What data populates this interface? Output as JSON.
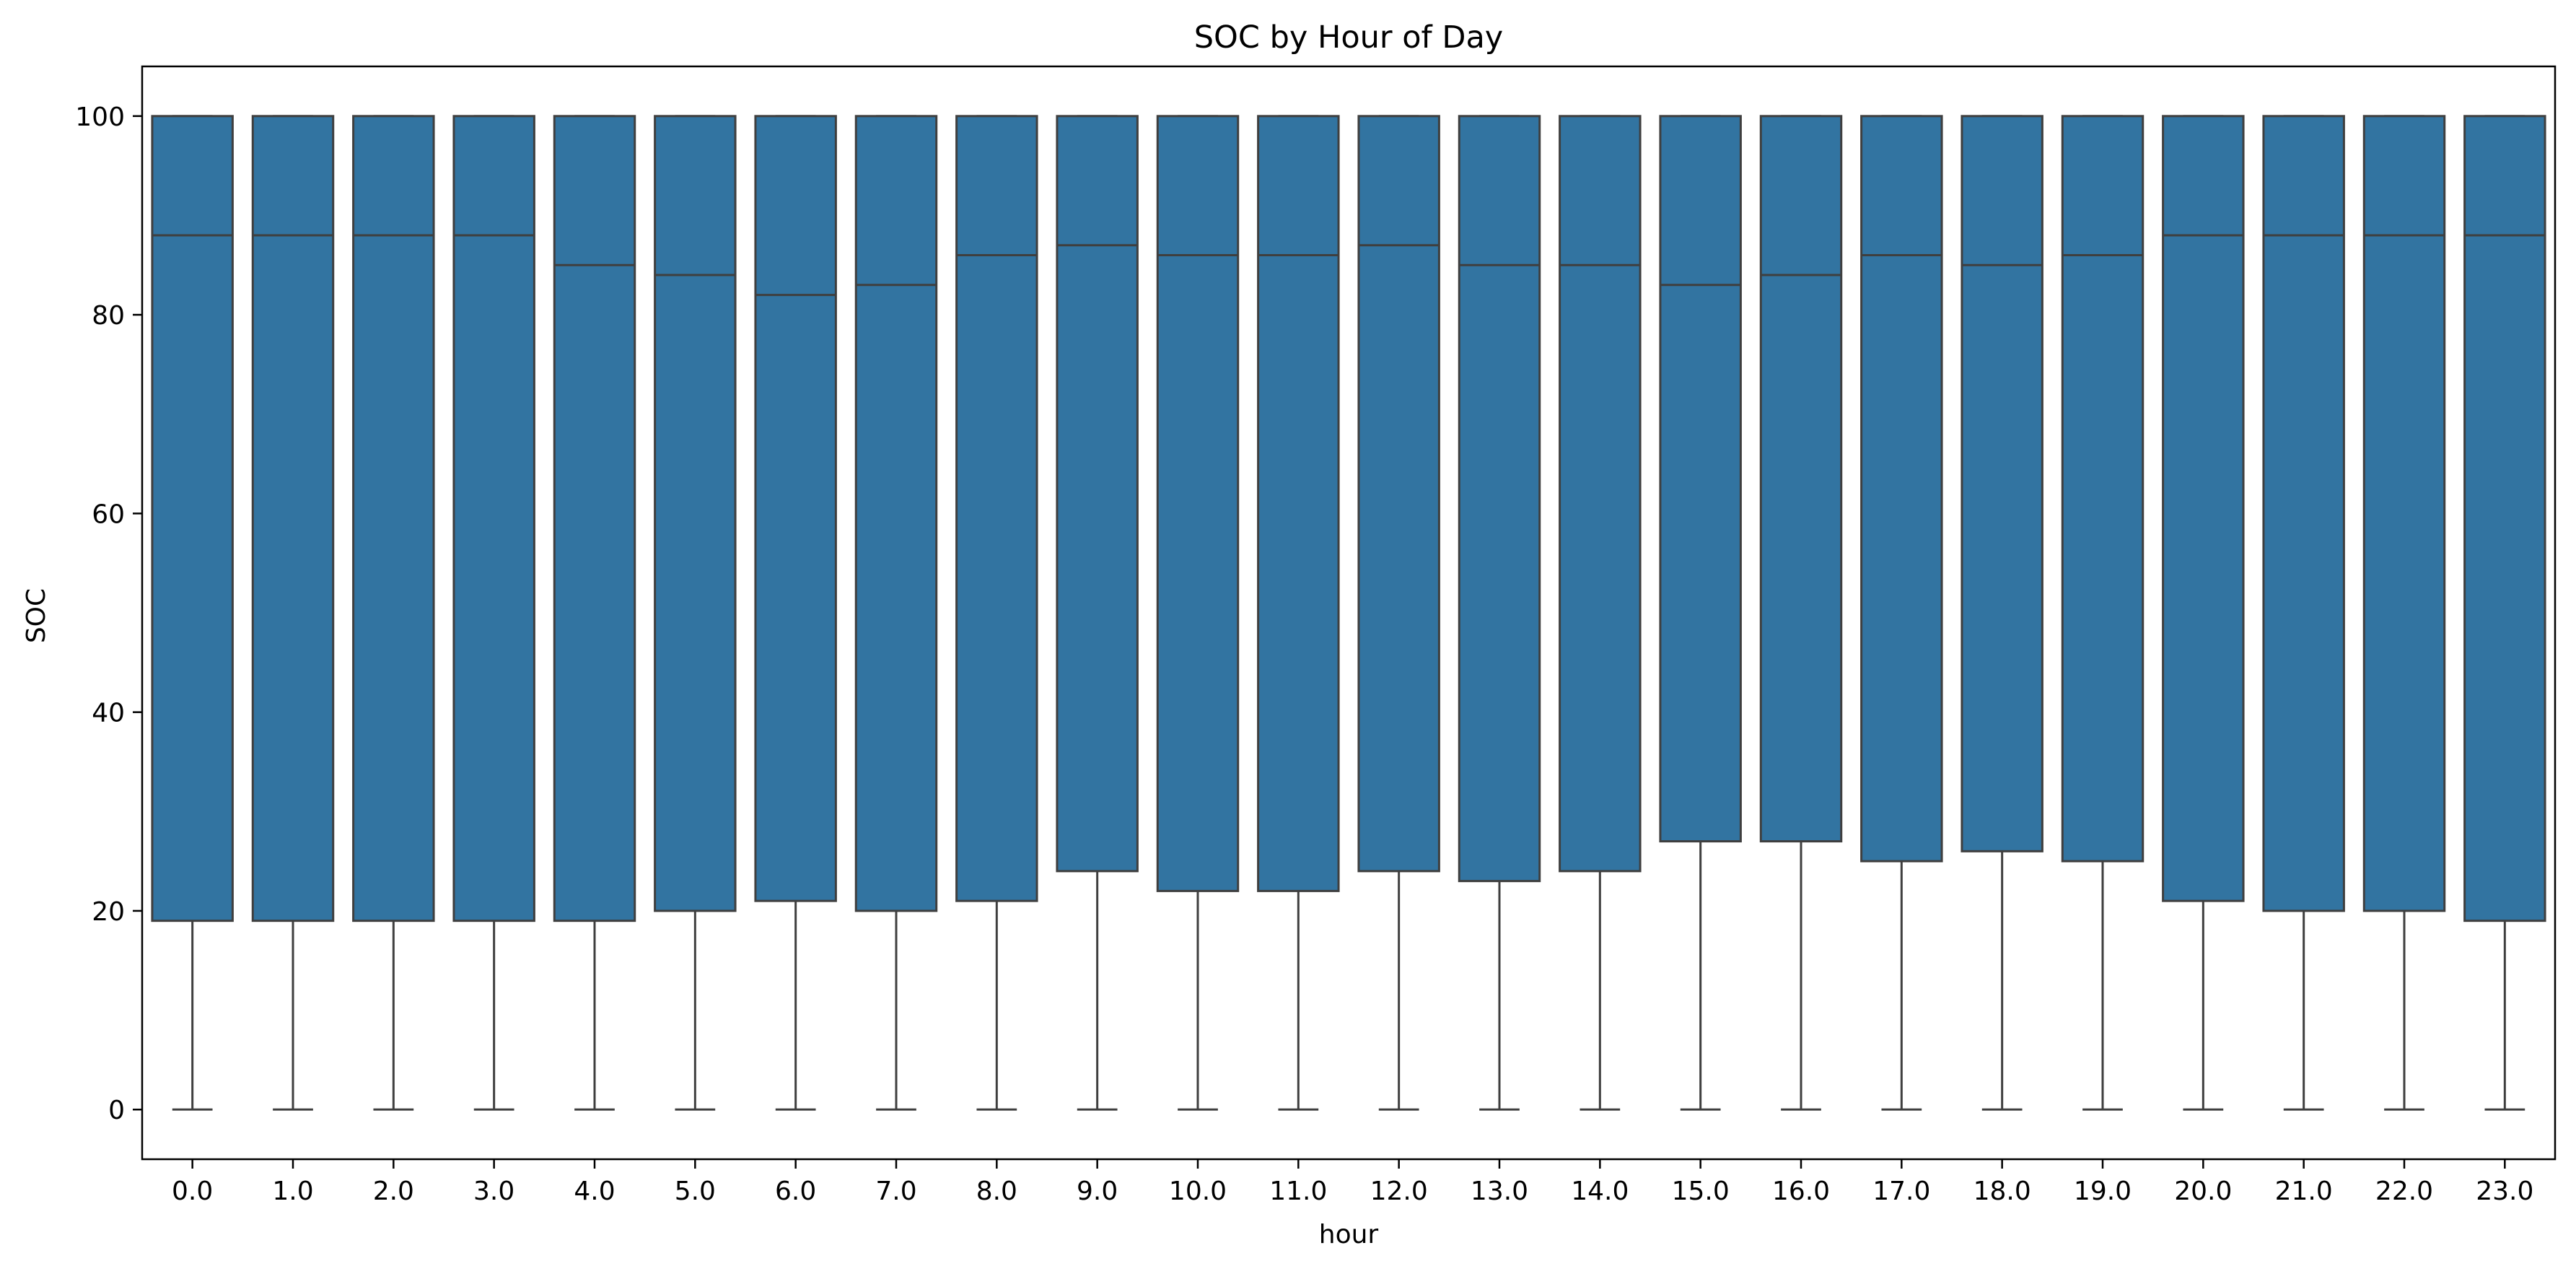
{
  "chart_data": {
    "type": "box",
    "title": "SOC by Hour of Day",
    "xlabel": "hour",
    "ylabel": "SOC",
    "ylim": [
      -5,
      105
    ],
    "yticks": [
      0,
      20,
      40,
      60,
      80,
      100
    ],
    "grid": false,
    "legend": "none",
    "box_color": "#3274a1",
    "line_color": "#3f3f3f",
    "categories": [
      "0.0",
      "1.0",
      "2.0",
      "3.0",
      "4.0",
      "5.0",
      "6.0",
      "7.0",
      "8.0",
      "9.0",
      "10.0",
      "11.0",
      "12.0",
      "13.0",
      "14.0",
      "15.0",
      "16.0",
      "17.0",
      "18.0",
      "19.0",
      "20.0",
      "21.0",
      "22.0",
      "23.0"
    ],
    "boxes": [
      {
        "min": 0,
        "q1": 19,
        "median": 88,
        "q3": 100,
        "max": 100
      },
      {
        "min": 0,
        "q1": 19,
        "median": 88,
        "q3": 100,
        "max": 100
      },
      {
        "min": 0,
        "q1": 19,
        "median": 88,
        "q3": 100,
        "max": 100
      },
      {
        "min": 0,
        "q1": 19,
        "median": 88,
        "q3": 100,
        "max": 100
      },
      {
        "min": 0,
        "q1": 19,
        "median": 85,
        "q3": 100,
        "max": 100
      },
      {
        "min": 0,
        "q1": 20,
        "median": 84,
        "q3": 100,
        "max": 100
      },
      {
        "min": 0,
        "q1": 21,
        "median": 82,
        "q3": 100,
        "max": 100
      },
      {
        "min": 0,
        "q1": 20,
        "median": 83,
        "q3": 100,
        "max": 100
      },
      {
        "min": 0,
        "q1": 21,
        "median": 86,
        "q3": 100,
        "max": 100
      },
      {
        "min": 0,
        "q1": 24,
        "median": 87,
        "q3": 100,
        "max": 100
      },
      {
        "min": 0,
        "q1": 22,
        "median": 86,
        "q3": 100,
        "max": 100
      },
      {
        "min": 0,
        "q1": 22,
        "median": 86,
        "q3": 100,
        "max": 100
      },
      {
        "min": 0,
        "q1": 24,
        "median": 87,
        "q3": 100,
        "max": 100
      },
      {
        "min": 0,
        "q1": 23,
        "median": 85,
        "q3": 100,
        "max": 100
      },
      {
        "min": 0,
        "q1": 24,
        "median": 85,
        "q3": 100,
        "max": 100
      },
      {
        "min": 0,
        "q1": 27,
        "median": 83,
        "q3": 100,
        "max": 100
      },
      {
        "min": 0,
        "q1": 27,
        "median": 84,
        "q3": 100,
        "max": 100
      },
      {
        "min": 0,
        "q1": 25,
        "median": 86,
        "q3": 100,
        "max": 100
      },
      {
        "min": 0,
        "q1": 26,
        "median": 85,
        "q3": 100,
        "max": 100
      },
      {
        "min": 0,
        "q1": 25,
        "median": 86,
        "q3": 100,
        "max": 100
      },
      {
        "min": 0,
        "q1": 21,
        "median": 88,
        "q3": 100,
        "max": 100
      },
      {
        "min": 0,
        "q1": 20,
        "median": 88,
        "q3": 100,
        "max": 100
      },
      {
        "min": 0,
        "q1": 20,
        "median": 88,
        "q3": 100,
        "max": 100
      },
      {
        "min": 0,
        "q1": 19,
        "median": 88,
        "q3": 100,
        "max": 100
      }
    ]
  }
}
